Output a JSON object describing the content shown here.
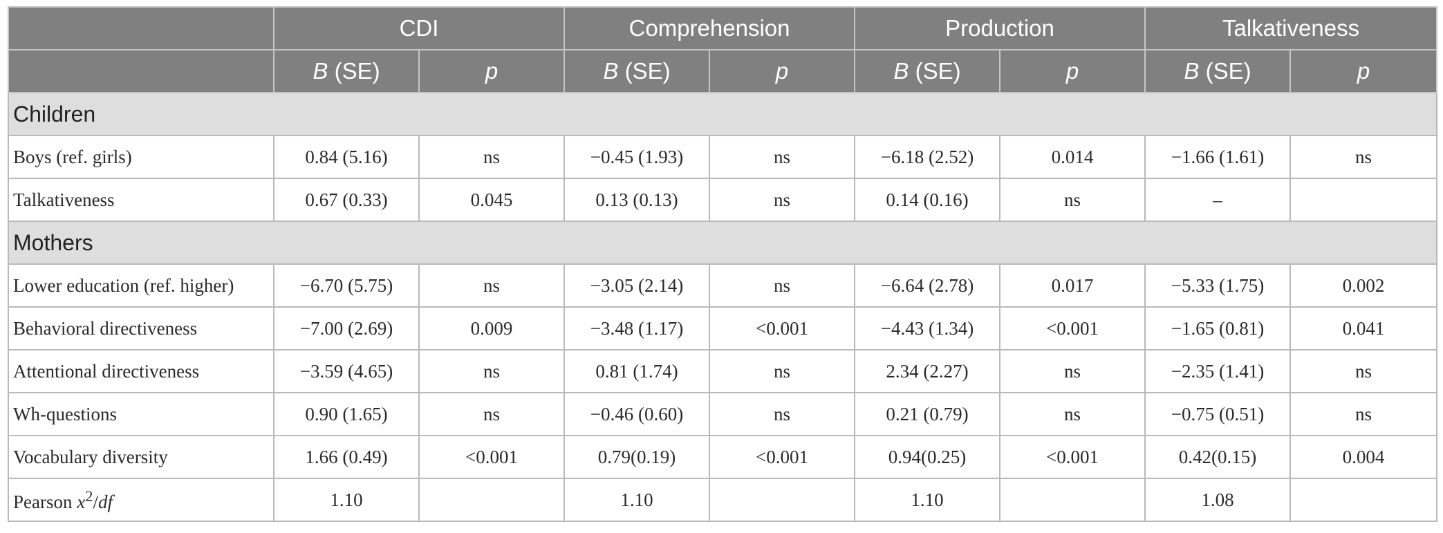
{
  "header": {
    "groups": [
      "CDI",
      "Comprehension",
      "Production",
      "Talkativeness"
    ],
    "sub": {
      "b_letter": "B",
      "b_rest": " (SE)",
      "p": "p"
    }
  },
  "sections": [
    {
      "title": "Children",
      "rows": [
        {
          "label": "Boys (ref. girls)",
          "cells": [
            "0.84 (5.16)",
            "ns",
            "−0.45 (1.93)",
            "ns",
            "−6.18 (2.52)",
            "0.014",
            "−1.66 (1.61)",
            "ns"
          ]
        },
        {
          "label": "Talkativeness",
          "cells": [
            "0.67 (0.33)",
            "0.045",
            "0.13 (0.13)",
            "ns",
            "0.14 (0.16)",
            "ns",
            "–",
            ""
          ]
        }
      ]
    },
    {
      "title": "Mothers",
      "rows": [
        {
          "label": "Lower education (ref. higher)",
          "cells": [
            "−6.70 (5.75)",
            "ns",
            "−3.05 (2.14)",
            "ns",
            "−6.64 (2.78)",
            "0.017",
            "−5.33 (1.75)",
            "0.002"
          ]
        },
        {
          "label": "Behavioral directiveness",
          "cells": [
            "−7.00 (2.69)",
            "0.009",
            "−3.48 (1.17)",
            "<0.001",
            "−4.43 (1.34)",
            "<0.001",
            "−1.65 (0.81)",
            "0.041"
          ]
        },
        {
          "label": "Attentional directiveness",
          "cells": [
            "−3.59 (4.65)",
            "ns",
            "0.81 (1.74)",
            "ns",
            "2.34 (2.27)",
            "ns",
            "−2.35 (1.41)",
            "ns"
          ]
        },
        {
          "label": "Wh-questions",
          "cells": [
            "0.90 (1.65)",
            "ns",
            "−0.46 (0.60)",
            "ns",
            "0.21 (0.79)",
            "ns",
            "−0.75 (0.51)",
            "ns"
          ]
        },
        {
          "label": "Vocabulary diversity",
          "cells": [
            "1.66 (0.49)",
            "<0.001",
            "0.79(0.19)",
            "<0.001",
            "0.94(0.25)",
            "<0.001",
            "0.42(0.15)",
            "0.004"
          ]
        }
      ]
    }
  ],
  "footer": {
    "label_prefix": "Pearson ",
    "label_x": "x",
    "label_sup": "2",
    "label_slash": "/",
    "label_df": "df",
    "cells": [
      "1.10",
      "",
      "1.10",
      "",
      "1.10",
      "",
      "1.08",
      ""
    ]
  }
}
